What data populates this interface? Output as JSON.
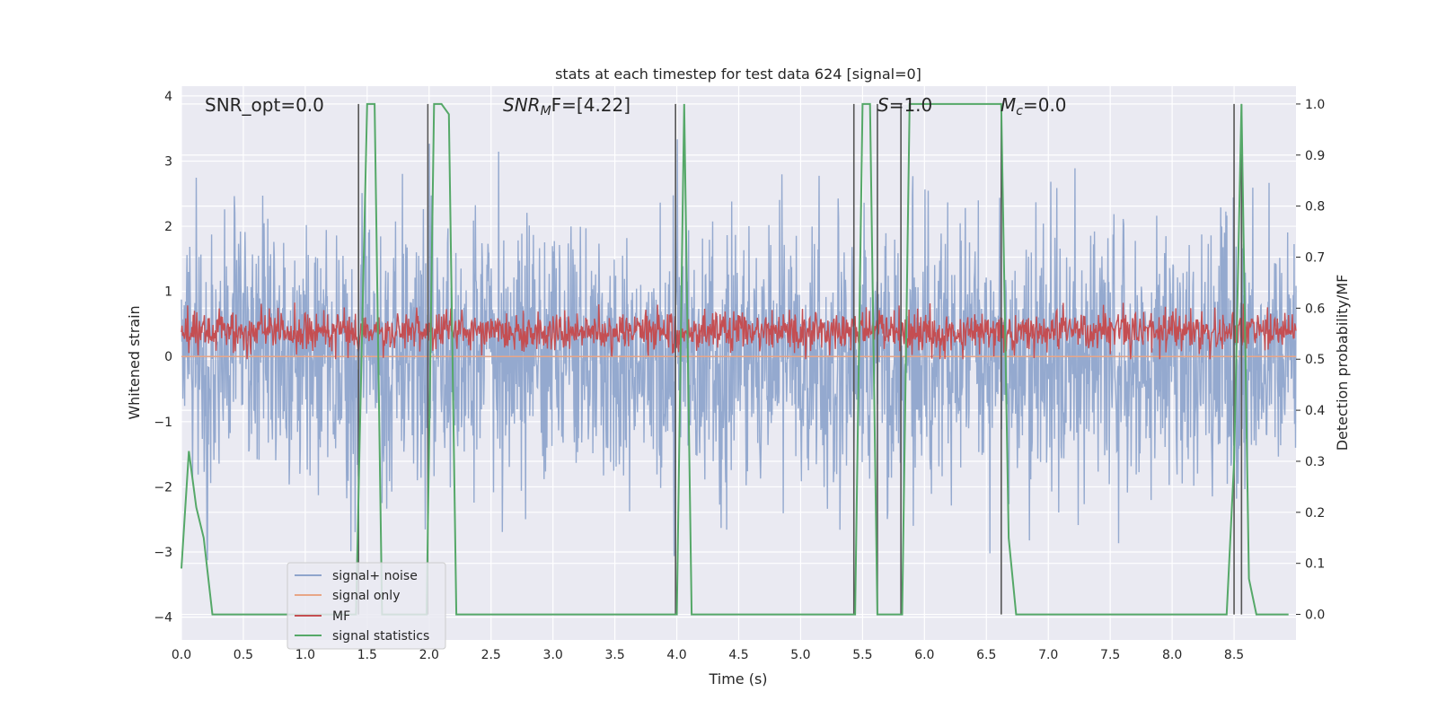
{
  "chart_data": {
    "type": "line",
    "title": "stats at each timestep for test data 624 [signal=0]",
    "xlabel": "Time (s)",
    "ylabel": "Whitened strain",
    "y2label": "Detection probability/MF",
    "xlim": [
      0.0,
      9.0
    ],
    "ylim": [
      -4.35,
      4.15
    ],
    "y2lim": [
      -0.05,
      1.035
    ],
    "xticks": [
      "0.0",
      "0.5",
      "1.0",
      "1.5",
      "2.0",
      "2.5",
      "3.0",
      "3.5",
      "4.0",
      "4.5",
      "5.0",
      "5.5",
      "6.0",
      "6.5",
      "7.0",
      "7.5",
      "8.0",
      "8.5"
    ],
    "yticks": [
      "4",
      "3",
      "2",
      "1",
      "0",
      "−1",
      "−2",
      "−3",
      "−4"
    ],
    "y2ticks": [
      "1.0",
      "0.9",
      "0.8",
      "0.7",
      "0.6",
      "0.5",
      "0.4",
      "0.3",
      "0.2",
      "0.1",
      "0.0"
    ],
    "grid": true,
    "legend_position": "bottom-left",
    "annotations": {
      "snr_opt": "SNR_opt=0.0",
      "snr_mf_base": "SNR",
      "snr_mf_sub": "M",
      "snr_mf_tail": "F=[4.22]",
      "s_stat_base": "S",
      "s_stat_tail": "=1.0",
      "mc_base": "M",
      "mc_sub": "c",
      "mc_tail": "=0.0"
    },
    "series": [
      {
        "name": "signal+ noise",
        "color": "#8fa5cc",
        "axis": "left",
        "style": "noise",
        "x_range": [
          0.0,
          9.0
        ],
        "sigma": 1.0,
        "y_band": [
          -2.0,
          3.7
        ]
      },
      {
        "name": "signal only",
        "color": "#e8a687",
        "axis": "left",
        "x": [
          0.0,
          9.0
        ],
        "y": [
          0.0,
          0.0
        ]
      },
      {
        "name": "MF",
        "color": "#c44e52",
        "axis": "right",
        "style": "noise",
        "x_range": [
          0.0,
          9.0
        ],
        "mean": 0.555,
        "y_band": [
          0.5,
          0.63
        ]
      },
      {
        "name": "signal statistics",
        "color": "#55a868",
        "axis": "right",
        "x": [
          0.0,
          0.06,
          0.12,
          0.18,
          0.25,
          1.41,
          1.44,
          1.5,
          1.56,
          1.62,
          1.68,
          1.98,
          2.04,
          2.1,
          2.16,
          2.22,
          4.0,
          4.06,
          4.12,
          4.18,
          5.44,
          5.5,
          5.56,
          5.62,
          5.68,
          5.82,
          5.88,
          6.62,
          6.68,
          6.74,
          8.44,
          8.5,
          8.56,
          8.62,
          8.68,
          8.94
        ],
        "y": [
          0.09,
          0.32,
          0.21,
          0.15,
          0.0,
          0.0,
          0.35,
          1.0,
          1.0,
          0.0,
          0.0,
          0.0,
          1.0,
          1.0,
          0.98,
          0.0,
          0.0,
          1.0,
          0.0,
          0.0,
          0.0,
          1.0,
          1.0,
          0.0,
          0.0,
          0.0,
          1.0,
          1.0,
          0.15,
          0.0,
          0.0,
          0.3,
          1.0,
          0.07,
          0.0,
          0.0
        ]
      }
    ],
    "vertical_markers": {
      "color": "#555555",
      "x": [
        1.43,
        1.99,
        3.99,
        5.43,
        5.62,
        5.81,
        6.62,
        8.5,
        8.56
      ]
    }
  }
}
